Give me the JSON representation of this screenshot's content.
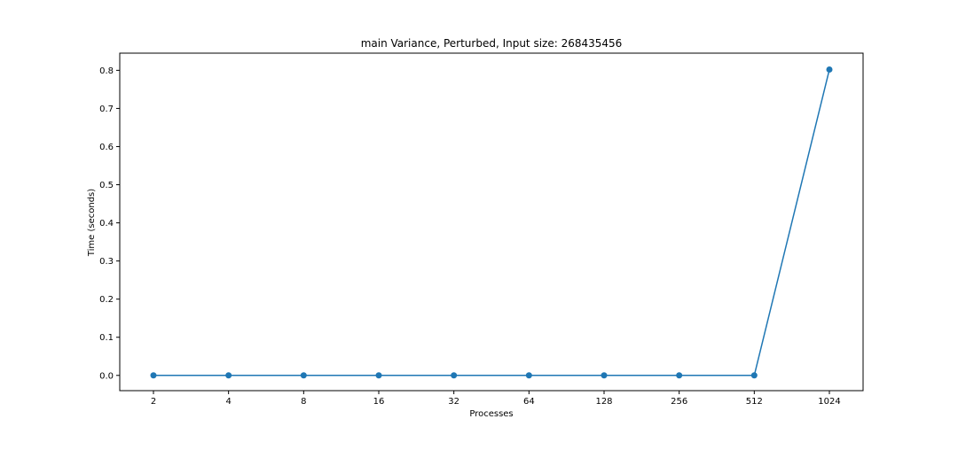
{
  "chart_data": {
    "type": "line",
    "title": "main Variance, Perturbed, Input size: 268435456",
    "xlabel": "Processes",
    "ylabel": "Time (seconds)",
    "categories": [
      "2",
      "4",
      "8",
      "16",
      "32",
      "64",
      "128",
      "256",
      "512",
      "1024"
    ],
    "series": [
      {
        "values": [
          0.0,
          0.0,
          0.0,
          0.0,
          0.0,
          0.0,
          0.0,
          0.0,
          0.0,
          0.802
        ]
      }
    ],
    "ylim": [
      -0.04,
      0.845
    ],
    "yticks": [
      0.0,
      0.1,
      0.2,
      0.3,
      0.4,
      0.5,
      0.6,
      0.7,
      0.8
    ],
    "ytick_labels": [
      "0.0",
      "0.1",
      "0.2",
      "0.3",
      "0.4",
      "0.5",
      "0.6",
      "0.7",
      "0.8"
    ],
    "grid": false,
    "legend": "none",
    "marker": "circle",
    "colors": {
      "series": "#1f77b4",
      "axes": "#000000",
      "background": "#ffffff"
    }
  }
}
